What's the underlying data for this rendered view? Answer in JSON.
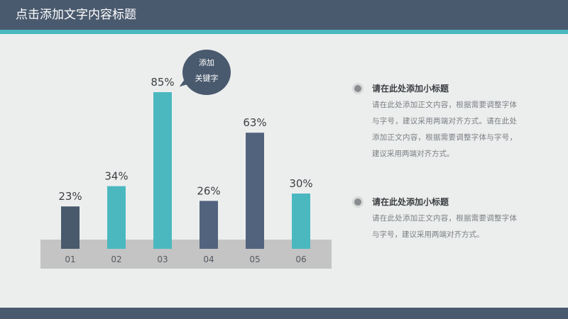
{
  "header": {
    "title": "点击添加文字内容标题"
  },
  "colors": {
    "header": "#4a5a6e",
    "accent": "#4bb8c0",
    "bar_dark": "#4a5a6e",
    "bar_teal": "#4bb8c0",
    "axis_band": "#c4c4c4"
  },
  "chart_data": {
    "type": "bar",
    "categories": [
      "01",
      "02",
      "03",
      "04",
      "05",
      "06"
    ],
    "values": [
      23,
      34,
      85,
      26,
      63,
      30
    ],
    "value_labels": [
      "23%",
      "34%",
      "85%",
      "26%",
      "63%",
      "30%"
    ],
    "colors": [
      "#485a6b",
      "#4bb8c0",
      "#4bb8c0",
      "#52637e",
      "#52637e",
      "#4bb8c0"
    ],
    "ylim": [
      0,
      100
    ],
    "grid": false,
    "title": "",
    "xlabel": "",
    "ylabel": ""
  },
  "callout": {
    "line1": "添加",
    "line2": "关键字"
  },
  "items": [
    {
      "title": "请在此处添加小标题",
      "body": "请在此处添加正文内容，根据需要调整字体与字号，建议采用两端对齐方式。请在此处添加正文内容，根据需要调整字体与字号，建议采用两端对齐方式。"
    },
    {
      "title": "请在此处添加小标题",
      "body": "请在此处添加正文内容，根据需要调整字体与字号，建议采用两端对齐方式。"
    }
  ]
}
